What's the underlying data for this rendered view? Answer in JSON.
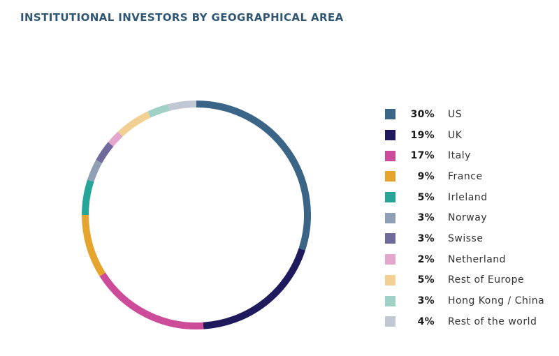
{
  "chart_data": {
    "type": "pie",
    "title": "INSTITUTIONAL INVESTORS BY GEOGRAPHICAL AREA",
    "donut": true,
    "value_suffix": "%",
    "legend_position": "right",
    "slices": [
      {
        "label": "US",
        "value": 30,
        "color": "#3a6587"
      },
      {
        "label": "UK",
        "value": 19,
        "color": "#1f1a5e"
      },
      {
        "label": "Italy",
        "value": 17,
        "color": "#cc4c9a"
      },
      {
        "label": "France",
        "value": 9,
        "color": "#e5a42d"
      },
      {
        "label": "Irleland",
        "value": 5,
        "color": "#26a699"
      },
      {
        "label": "Norway",
        "value": 3,
        "color": "#8fa0b5"
      },
      {
        "label": "Swisse",
        "value": 3,
        "color": "#6e6a9c"
      },
      {
        "label": "Netherland",
        "value": 2,
        "color": "#e3a6cd"
      },
      {
        "label": "Rest of Europe",
        "value": 5,
        "color": "#f2cf92"
      },
      {
        "label": "Hong Kong / China",
        "value": 3,
        "color": "#9fd1c7"
      },
      {
        "label": "Rest of the world",
        "value": 4,
        "color": "#c2c8d3"
      }
    ]
  }
}
